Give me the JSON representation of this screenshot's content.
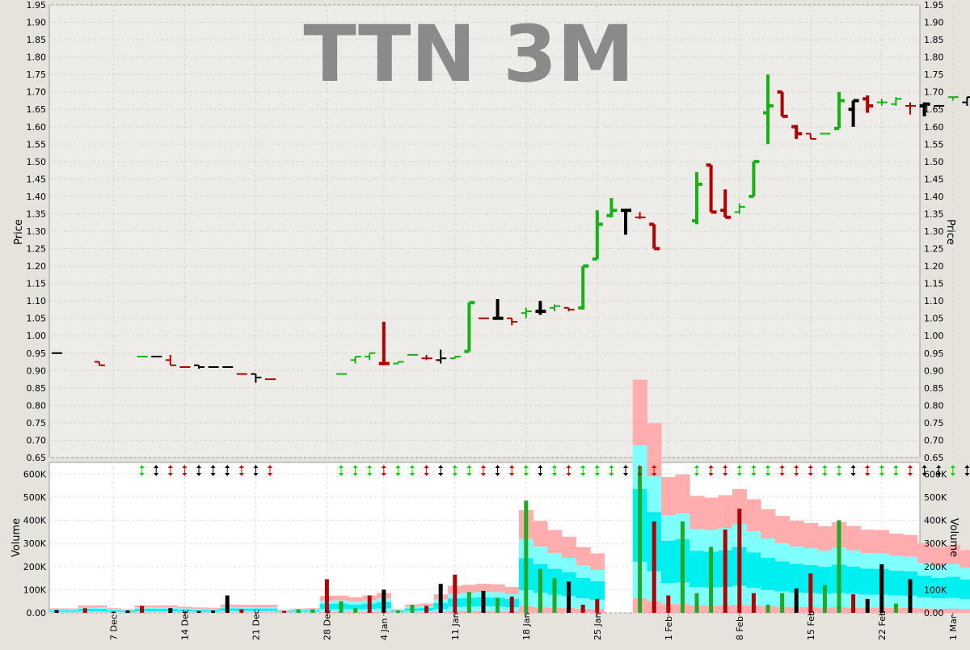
{
  "chart_data": [
    {
      "type": "ohlc",
      "title": "TTN 3M",
      "ylabel": "Price",
      "ylim": [
        0.65,
        1.95
      ],
      "yticks": [
        "0.65",
        "0.70",
        "0.75",
        "0.80",
        "0.85",
        "0.90",
        "0.95",
        "1.00",
        "1.05",
        "1.10",
        "1.15",
        "1.20",
        "1.25",
        "1.30",
        "1.35",
        "1.40",
        "1.45",
        "1.50",
        "1.55",
        "1.60",
        "1.65",
        "1.70",
        "1.75",
        "1.80",
        "1.85",
        "1.90",
        "1.95"
      ],
      "colors": {
        "up": "#12b312",
        "down": "#b30000",
        "neutral": "#000000"
      },
      "candles": [
        {
          "d": 0,
          "o": 0.95,
          "h": 0.95,
          "l": 0.95,
          "c": 0.95,
          "k": "n"
        },
        {
          "d": 3,
          "o": 0.925,
          "h": 0.925,
          "l": 0.915,
          "c": 0.915,
          "k": "d"
        },
        {
          "d": 6,
          "o": 0.94,
          "h": 0.94,
          "l": 0.94,
          "c": 0.94,
          "k": "u"
        },
        {
          "d": 7,
          "o": 0.94,
          "h": 0.94,
          "l": 0.94,
          "c": 0.94,
          "k": "n"
        },
        {
          "d": 8,
          "o": 0.93,
          "h": 0.945,
          "l": 0.915,
          "c": 0.915,
          "k": "d"
        },
        {
          "d": 9,
          "o": 0.91,
          "h": 0.91,
          "l": 0.91,
          "c": 0.91,
          "k": "d"
        },
        {
          "d": 10,
          "o": 0.915,
          "h": 0.915,
          "l": 0.905,
          "c": 0.91,
          "k": "n"
        },
        {
          "d": 11,
          "o": 0.91,
          "h": 0.91,
          "l": 0.91,
          "c": 0.91,
          "k": "n"
        },
        {
          "d": 12,
          "o": 0.91,
          "h": 0.91,
          "l": 0.91,
          "c": 0.91,
          "k": "n"
        },
        {
          "d": 13,
          "o": 0.89,
          "h": 0.89,
          "l": 0.89,
          "c": 0.89,
          "k": "d"
        },
        {
          "d": 14,
          "o": 0.89,
          "h": 0.89,
          "l": 0.865,
          "c": 0.88,
          "k": "n"
        },
        {
          "d": 15,
          "o": 0.875,
          "h": 0.875,
          "l": 0.875,
          "c": 0.875,
          "k": "d"
        },
        {
          "d": 20,
          "o": 0.89,
          "h": 0.89,
          "l": 0.89,
          "c": 0.89,
          "k": "u"
        },
        {
          "d": 21,
          "o": 0.93,
          "h": 0.94,
          "l": 0.92,
          "c": 0.94,
          "k": "u"
        },
        {
          "d": 22,
          "o": 0.94,
          "h": 0.95,
          "l": 0.93,
          "c": 0.95,
          "k": "u"
        },
        {
          "d": 23,
          "o": 0.92,
          "h": 1.04,
          "l": 0.915,
          "c": 0.92,
          "k": "d"
        },
        {
          "d": 24,
          "o": 0.92,
          "h": 0.925,
          "l": 0.92,
          "c": 0.925,
          "k": "u"
        },
        {
          "d": 25,
          "o": 0.945,
          "h": 0.945,
          "l": 0.945,
          "c": 0.945,
          "k": "u"
        },
        {
          "d": 26,
          "o": 0.935,
          "h": 0.945,
          "l": 0.93,
          "c": 0.935,
          "k": "d"
        },
        {
          "d": 27,
          "o": 0.93,
          "h": 0.96,
          "l": 0.92,
          "c": 0.935,
          "k": "n"
        },
        {
          "d": 28,
          "o": 0.935,
          "h": 0.94,
          "l": 0.935,
          "c": 0.94,
          "k": "u"
        },
        {
          "d": 29,
          "o": 0.955,
          "h": 1.095,
          "l": 0.955,
          "c": 1.095,
          "k": "u"
        },
        {
          "d": 30,
          "o": 1.05,
          "h": 1.05,
          "l": 1.05,
          "c": 1.05,
          "k": "d"
        },
        {
          "d": 31,
          "o": 1.05,
          "h": 1.105,
          "l": 1.05,
          "c": 1.05,
          "k": "n"
        },
        {
          "d": 32,
          "o": 1.05,
          "h": 1.05,
          "l": 1.03,
          "c": 1.04,
          "k": "d"
        },
        {
          "d": 33,
          "o": 1.065,
          "h": 1.08,
          "l": 1.05,
          "c": 1.07,
          "k": "u"
        },
        {
          "d": 34,
          "o": 1.07,
          "h": 1.1,
          "l": 1.06,
          "c": 1.07,
          "k": "n"
        },
        {
          "d": 35,
          "o": 1.08,
          "h": 1.09,
          "l": 1.07,
          "c": 1.085,
          "k": "u"
        },
        {
          "d": 36,
          "o": 1.08,
          "h": 1.08,
          "l": 1.07,
          "c": 1.075,
          "k": "d"
        },
        {
          "d": 37,
          "o": 1.08,
          "h": 1.2,
          "l": 1.075,
          "c": 1.2,
          "k": "u"
        },
        {
          "d": 38,
          "o": 1.22,
          "h": 1.36,
          "l": 1.22,
          "c": 1.32,
          "k": "u"
        },
        {
          "d": 39,
          "o": 1.345,
          "h": 1.395,
          "l": 1.34,
          "c": 1.36,
          "k": "u"
        },
        {
          "d": 40,
          "o": 1.36,
          "h": 1.36,
          "l": 1.29,
          "c": 1.36,
          "k": "n"
        },
        {
          "d": 41,
          "o": 1.34,
          "h": 1.355,
          "l": 1.335,
          "c": 1.34,
          "k": "d"
        },
        {
          "d": 42,
          "o": 1.32,
          "h": 1.32,
          "l": 1.25,
          "c": 1.25,
          "k": "d"
        },
        {
          "d": 45,
          "o": 1.33,
          "h": 1.47,
          "l": 1.32,
          "c": 1.435,
          "k": "u"
        },
        {
          "d": 46,
          "o": 1.49,
          "h": 1.49,
          "l": 1.355,
          "c": 1.355,
          "k": "d"
        },
        {
          "d": 47,
          "o": 1.36,
          "h": 1.42,
          "l": 1.34,
          "c": 1.34,
          "k": "d"
        },
        {
          "d": 48,
          "o": 1.355,
          "h": 1.38,
          "l": 1.35,
          "c": 1.37,
          "k": "u"
        },
        {
          "d": 49,
          "o": 1.4,
          "h": 1.5,
          "l": 1.4,
          "c": 1.5,
          "k": "u"
        },
        {
          "d": 50,
          "o": 1.64,
          "h": 1.75,
          "l": 1.55,
          "c": 1.66,
          "k": "u"
        },
        {
          "d": 51,
          "o": 1.7,
          "h": 1.7,
          "l": 1.63,
          "c": 1.63,
          "k": "d"
        },
        {
          "d": 52,
          "o": 1.6,
          "h": 1.605,
          "l": 1.565,
          "c": 1.58,
          "k": "d"
        },
        {
          "d": 53,
          "o": 1.58,
          "h": 1.58,
          "l": 1.565,
          "c": 1.565,
          "k": "d"
        },
        {
          "d": 54,
          "o": 1.58,
          "h": 1.58,
          "l": 1.58,
          "c": 1.58,
          "k": "u"
        },
        {
          "d": 55,
          "o": 1.595,
          "h": 1.7,
          "l": 1.595,
          "c": 1.675,
          "k": "u"
        },
        {
          "d": 56,
          "o": 1.65,
          "h": 1.675,
          "l": 1.6,
          "c": 1.675,
          "k": "n"
        },
        {
          "d": 57,
          "o": 1.68,
          "h": 1.69,
          "l": 1.64,
          "c": 1.66,
          "k": "d"
        },
        {
          "d": 58,
          "o": 1.67,
          "h": 1.68,
          "l": 1.66,
          "c": 1.67,
          "k": "u"
        },
        {
          "d": 59,
          "o": 1.665,
          "h": 1.685,
          "l": 1.66,
          "c": 1.68,
          "k": "u"
        },
        {
          "d": 60,
          "o": 1.66,
          "h": 1.67,
          "l": 1.635,
          "c": 1.66,
          "k": "d"
        },
        {
          "d": 61,
          "o": 1.66,
          "h": 1.67,
          "l": 1.63,
          "c": 1.665,
          "k": "n"
        },
        {
          "d": 62,
          "o": 1.66,
          "h": 1.66,
          "l": 1.66,
          "c": 1.66,
          "k": "n"
        },
        {
          "d": 63,
          "o": 1.685,
          "h": 1.685,
          "l": 1.675,
          "c": 1.685,
          "k": "u"
        },
        {
          "d": 64,
          "o": 1.67,
          "h": 1.685,
          "l": 1.66,
          "c": 1.685,
          "k": "n"
        }
      ]
    },
    {
      "type": "bar",
      "ylabel": "Volume",
      "ylim": [
        0,
        650000
      ],
      "yticks": [
        "0.00",
        "100K",
        "200K",
        "300K",
        "400K",
        "500K",
        "600K"
      ],
      "xtick_labels": [
        {
          "d": 4,
          "label": "7 Dec"
        },
        {
          "d": 9,
          "label": "14 Dec"
        },
        {
          "d": 14,
          "label": "21 Dec"
        },
        {
          "d": 19,
          "label": "28 Dec"
        },
        {
          "d": 23,
          "label": "4 Jan"
        },
        {
          "d": 28,
          "label": "11 Jan"
        },
        {
          "d": 33,
          "label": "18 Jan"
        },
        {
          "d": 38,
          "label": "25 Jan"
        },
        {
          "d": 43,
          "label": "1 Feb"
        },
        {
          "d": 48,
          "label": "8 Feb"
        },
        {
          "d": 53,
          "label": "15 Feb"
        },
        {
          "d": 58,
          "label": "22 Feb"
        },
        {
          "d": 63,
          "label": "1 Mar"
        }
      ],
      "volume": [
        {
          "d": 0,
          "v": 12000,
          "k": "n"
        },
        {
          "d": 2,
          "v": 20000,
          "k": "d"
        },
        {
          "d": 4,
          "v": 5000,
          "k": "n"
        },
        {
          "d": 5,
          "v": 10000,
          "k": "n"
        },
        {
          "d": 6,
          "v": 30000,
          "k": "d"
        },
        {
          "d": 8,
          "v": 20000,
          "k": "n"
        },
        {
          "d": 9,
          "v": 5000,
          "k": "n"
        },
        {
          "d": 10,
          "v": 8000,
          "k": "n"
        },
        {
          "d": 11,
          "v": 10000,
          "k": "n"
        },
        {
          "d": 12,
          "v": 75000,
          "k": "n"
        },
        {
          "d": 13,
          "v": 15000,
          "k": "d"
        },
        {
          "d": 16,
          "v": 8000,
          "k": "d"
        },
        {
          "d": 17,
          "v": 15000,
          "k": "u"
        },
        {
          "d": 18,
          "v": 15000,
          "k": "u"
        },
        {
          "d": 19,
          "v": 145000,
          "k": "d"
        },
        {
          "d": 20,
          "v": 50000,
          "k": "u"
        },
        {
          "d": 21,
          "v": 20000,
          "k": "u"
        },
        {
          "d": 22,
          "v": 75000,
          "k": "d"
        },
        {
          "d": 23,
          "v": 100000,
          "k": "n"
        },
        {
          "d": 24,
          "v": 10000,
          "k": "u"
        },
        {
          "d": 25,
          "v": 35000,
          "k": "u"
        },
        {
          "d": 26,
          "v": 30000,
          "k": "d"
        },
        {
          "d": 27,
          "v": 125000,
          "k": "n"
        },
        {
          "d": 28,
          "v": 165000,
          "k": "d"
        },
        {
          "d": 29,
          "v": 90000,
          "k": "u"
        },
        {
          "d": 30,
          "v": 95000,
          "k": "n"
        },
        {
          "d": 31,
          "v": 65000,
          "k": "u"
        },
        {
          "d": 32,
          "v": 70000,
          "k": "d"
        },
        {
          "d": 33,
          "v": 485000,
          "k": "u"
        },
        {
          "d": 34,
          "v": 190000,
          "k": "u"
        },
        {
          "d": 35,
          "v": 150000,
          "k": "u"
        },
        {
          "d": 36,
          "v": 135000,
          "k": "n"
        },
        {
          "d": 37,
          "v": 35000,
          "k": "d"
        },
        {
          "d": 38,
          "v": 60000,
          "k": "d"
        },
        {
          "d": 41,
          "v": 630000,
          "k": "u"
        },
        {
          "d": 42,
          "v": 395000,
          "k": "d"
        },
        {
          "d": 43,
          "v": 75000,
          "k": "d"
        },
        {
          "d": 44,
          "v": 395000,
          "k": "u"
        },
        {
          "d": 45,
          "v": 85000,
          "k": "u"
        },
        {
          "d": 46,
          "v": 285000,
          "k": "u"
        },
        {
          "d": 47,
          "v": 360000,
          "k": "d"
        },
        {
          "d": 48,
          "v": 450000,
          "k": "d"
        },
        {
          "d": 49,
          "v": 85000,
          "k": "d"
        },
        {
          "d": 50,
          "v": 35000,
          "k": "u"
        },
        {
          "d": 51,
          "v": 85000,
          "k": "u"
        },
        {
          "d": 52,
          "v": 105000,
          "k": "n"
        },
        {
          "d": 53,
          "v": 170000,
          "k": "d"
        },
        {
          "d": 54,
          "v": 120000,
          "k": "u"
        },
        {
          "d": 55,
          "v": 400000,
          "k": "u"
        },
        {
          "d": 56,
          "v": 80000,
          "k": "d"
        },
        {
          "d": 57,
          "v": 60000,
          "k": "n"
        },
        {
          "d": 58,
          "v": 210000,
          "k": "n"
        },
        {
          "d": 59,
          "v": 40000,
          "k": "u"
        },
        {
          "d": 60,
          "v": 145000,
          "k": "n"
        }
      ]
    }
  ]
}
